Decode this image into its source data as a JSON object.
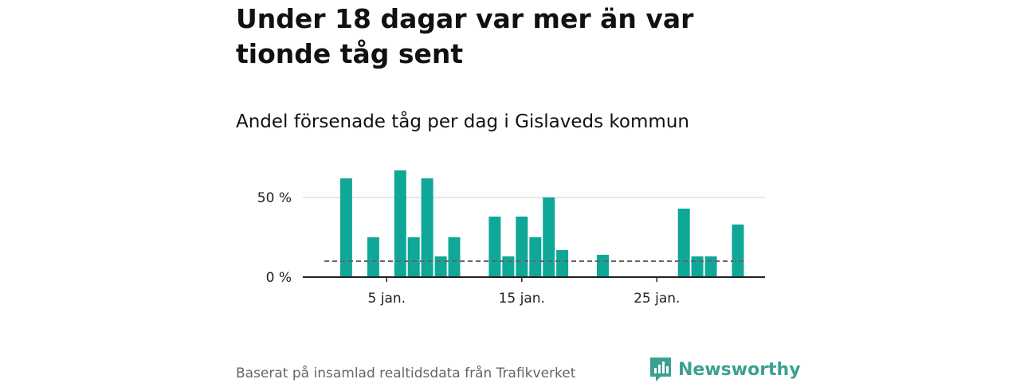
{
  "title": "Under 18 dagar var mer än var tionde tåg sent",
  "subtitle": "Andel försenade tåg per dag i Gislaveds kommun",
  "footer": {
    "source": "Baserat på insamlad realtidsdata från Trafikverket",
    "brand": "Newsworthy"
  },
  "colors": {
    "bar": "#0fa898",
    "reference_line": "#666666",
    "grid": "#dddddd",
    "axis": "#222222",
    "brand": "#3aa18f"
  },
  "chart_data": {
    "type": "bar",
    "x": [
      1,
      2,
      3,
      4,
      5,
      6,
      7,
      8,
      9,
      10,
      11,
      12,
      13,
      14,
      15,
      16,
      17,
      18,
      19,
      20,
      21,
      22,
      23,
      24,
      25,
      26,
      27,
      28,
      29,
      30,
      31
    ],
    "values": [
      0,
      62,
      0,
      25,
      0,
      67,
      25,
      62,
      13,
      25,
      0,
      0,
      38,
      13,
      38,
      25,
      50,
      17,
      0,
      0,
      14,
      0,
      0,
      0,
      0,
      0,
      43,
      13,
      13,
      0,
      33
    ],
    "reference_line": 10,
    "ylim": [
      0,
      70
    ],
    "yticks": [
      {
        "value": 0,
        "label": "0 %"
      },
      {
        "value": 50,
        "label": "50 %"
      }
    ],
    "xticks": [
      {
        "value": 5,
        "label": "5 jan."
      },
      {
        "value": 15,
        "label": "15 jan."
      },
      {
        "value": 25,
        "label": "25 jan."
      }
    ],
    "grid": true,
    "xlabel": "",
    "ylabel": ""
  }
}
